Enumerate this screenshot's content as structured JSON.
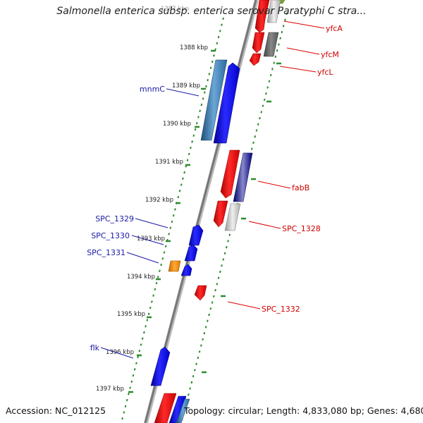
{
  "title": "Salmonella enterica subsp. enterica serovar Paratyphi C stra...",
  "footer": {
    "accession": "Accession: NC_012125",
    "topology": "Topology: circular; Length: 4,833,080 bp; Genes: 4,680"
  },
  "scale_ticks": [
    "1387 kbp",
    "1388 kbp",
    "1389 kbp",
    "1390 kbp",
    "1391 kbp",
    "1392 kbp",
    "1393 kbp",
    "1394 kbp",
    "1395 kbp",
    "1396 kbp",
    "1397 kbp"
  ],
  "gene_labels": [
    {
      "name": "yfcA",
      "strand": "reverse"
    },
    {
      "name": "yfcM",
      "strand": "reverse"
    },
    {
      "name": "yfcL",
      "strand": "reverse"
    },
    {
      "name": "mnmC",
      "strand": "forward"
    },
    {
      "name": "fabB",
      "strand": "reverse"
    },
    {
      "name": "SPC_1328",
      "strand": "reverse"
    },
    {
      "name": "SPC_1329",
      "strand": "forward"
    },
    {
      "name": "SPC_1330",
      "strand": "forward"
    },
    {
      "name": "SPC_1331",
      "strand": "forward"
    },
    {
      "name": "SPC_1332",
      "strand": "reverse"
    },
    {
      "name": "flk",
      "strand": "forward"
    }
  ],
  "colors": {
    "forward_label": "#1a1aa6",
    "reverse_label": "#d00000",
    "forward_feature": "#0000ee",
    "reverse_feature": "#ee0000",
    "gc_dots": "#2e8b2e",
    "backbone": "#888888"
  }
}
